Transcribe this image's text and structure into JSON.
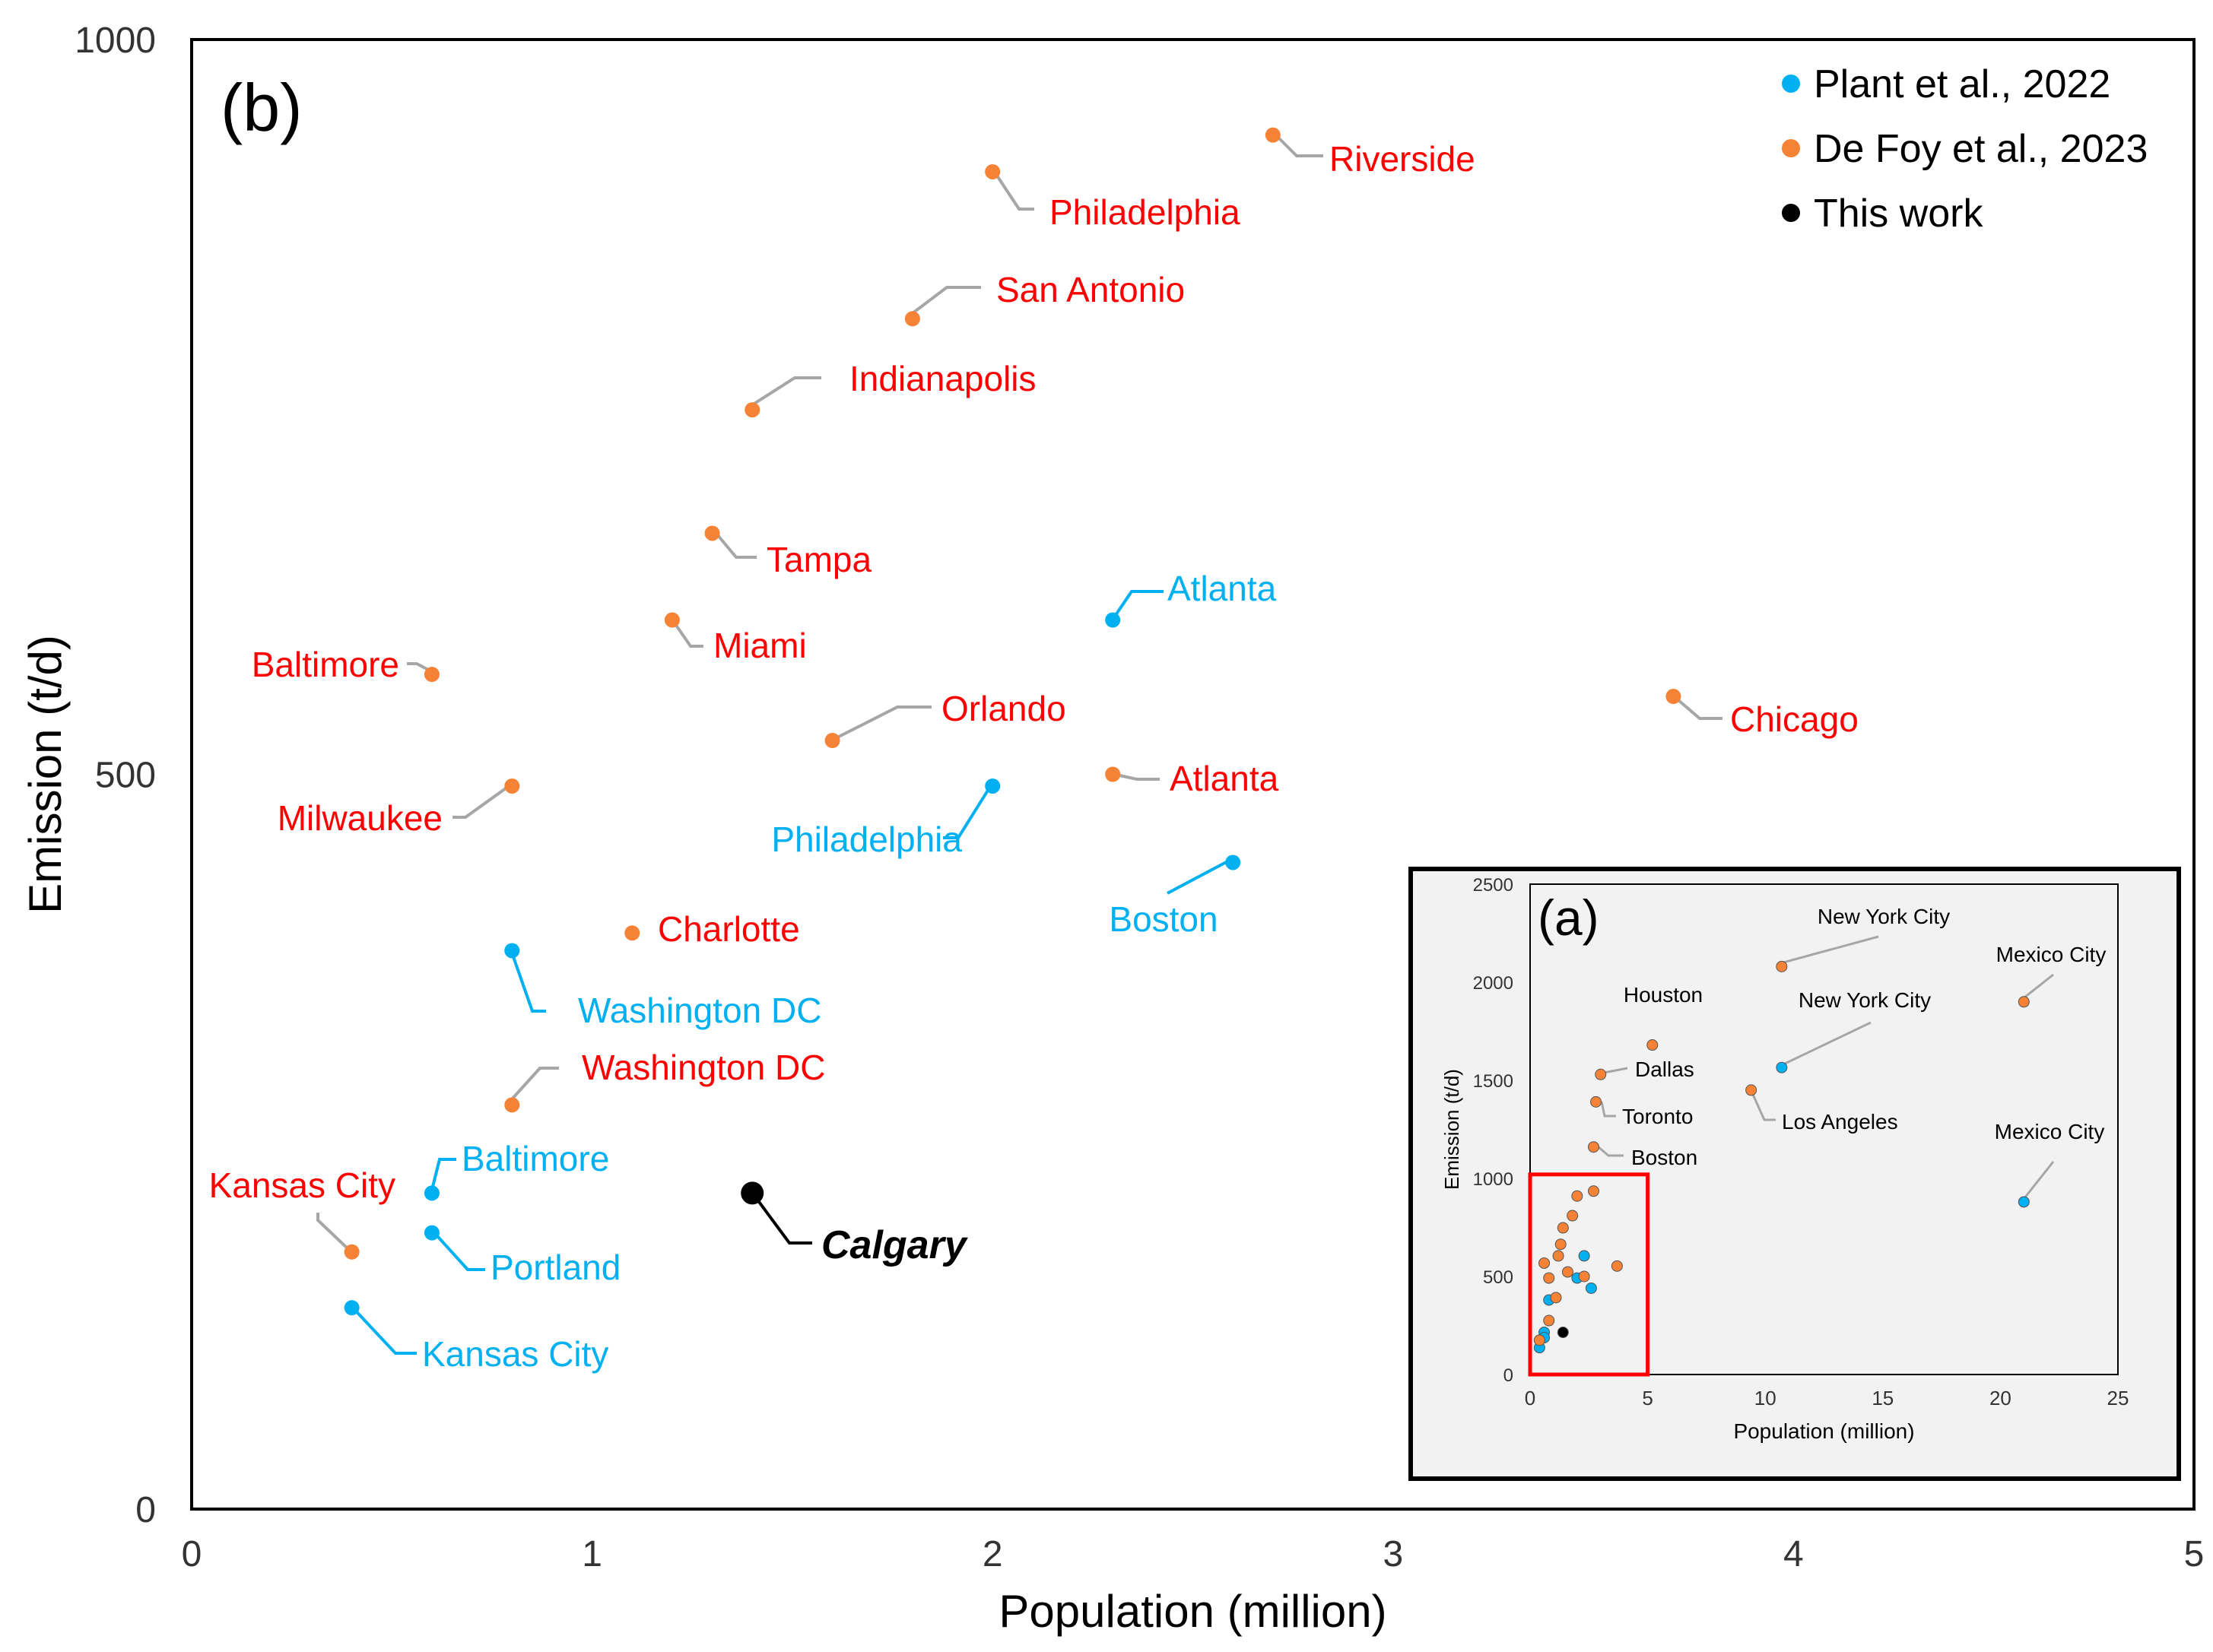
{
  "chart_data": [
    {
      "type": "scatter",
      "panel_label": "(b)",
      "xlabel": "Population  (million)",
      "ylabel": "Emission  (t/d)",
      "xlim": [
        0,
        5
      ],
      "ylim": [
        0,
        1000
      ],
      "x_ticks": [
        "0",
        "1",
        "2",
        "3",
        "4",
        "5"
      ],
      "y_ticks": [
        "0",
        "500",
        "1000"
      ],
      "grid": false,
      "legend_position": "top-right",
      "series": [
        {
          "name": "Plant et al., 2022",
          "color": "#00B0F0",
          "label_color": "#00B0F0",
          "points": [
            {
              "label": "Atlanta",
              "x": 2.3,
              "y": 605
            },
            {
              "label": "Philadelphia",
              "x": 2.0,
              "y": 492
            },
            {
              "label": "Boston",
              "x": 2.6,
              "y": 440
            },
            {
              "label": "Washington DC",
              "x": 0.8,
              "y": 380
            },
            {
              "label": "Baltimore",
              "x": 0.6,
              "y": 215
            },
            {
              "label": "Portland",
              "x": 0.6,
              "y": 188
            },
            {
              "label": "Kansas City",
              "x": 0.4,
              "y": 137
            }
          ]
        },
        {
          "name": "De Foy et al., 2023",
          "color": "#F58235",
          "label_color": "#FF0000",
          "points": [
            {
              "label": "Riverside",
              "x": 2.7,
              "y": 935
            },
            {
              "label": "Philadelphia",
              "x": 2.0,
              "y": 910
            },
            {
              "label": "San Antonio",
              "x": 1.8,
              "y": 810
            },
            {
              "label": "Indianapolis",
              "x": 1.4,
              "y": 748
            },
            {
              "label": "Tampa",
              "x": 1.3,
              "y": 664
            },
            {
              "label": "Miami",
              "x": 1.2,
              "y": 605
            },
            {
              "label": "Baltimore",
              "x": 0.6,
              "y": 568
            },
            {
              "label": "Orlando",
              "x": 1.6,
              "y": 523
            },
            {
              "label": "Chicago",
              "x": 3.7,
              "y": 553
            },
            {
              "label": "Atlanta",
              "x": 2.3,
              "y": 500
            },
            {
              "label": "Milwaukee",
              "x": 0.8,
              "y": 492
            },
            {
              "label": "Charlotte",
              "x": 1.1,
              "y": 392
            },
            {
              "label": "Washington DC",
              "x": 0.8,
              "y": 275
            },
            {
              "label": "Kansas City",
              "x": 0.4,
              "y": 175
            }
          ]
        },
        {
          "name": "This work",
          "color": "#000000",
          "label_color": "#000000",
          "points": [
            {
              "label": "Calgary",
              "x": 1.4,
              "y": 215
            }
          ]
        }
      ]
    },
    {
      "type": "scatter",
      "panel_label": "(a)",
      "xlabel": "Population (million)",
      "ylabel": "Emission (t/d)",
      "xlim": [
        0,
        25
      ],
      "ylim": [
        0,
        2500
      ],
      "x_ticks": [
        "0",
        "5",
        "10",
        "15",
        "20",
        "25"
      ],
      "y_ticks": [
        "0",
        "500",
        "1000",
        "1500",
        "2000",
        "2500"
      ],
      "grid": false,
      "zoom_box": {
        "x": [
          0,
          5
        ],
        "y": [
          0,
          1020
        ]
      },
      "series": [
        {
          "name": "Plant et al., 2022",
          "color": "#00B0F0",
          "points": [
            {
              "label": "New York City",
              "x": 10.7,
              "y": 1565
            },
            {
              "label": "Mexico City",
              "x": 21.0,
              "y": 880
            },
            {
              "label": "",
              "x": 2.3,
              "y": 605
            },
            {
              "label": "",
              "x": 2.0,
              "y": 492
            },
            {
              "label": "",
              "x": 2.6,
              "y": 440
            },
            {
              "label": "",
              "x": 0.8,
              "y": 380
            },
            {
              "label": "",
              "x": 0.6,
              "y": 215
            },
            {
              "label": "",
              "x": 0.6,
              "y": 188
            },
            {
              "label": "",
              "x": 0.4,
              "y": 137
            }
          ]
        },
        {
          "name": "De Foy et al., 2023",
          "color": "#F58235",
          "points": [
            {
              "label": "New York City",
              "x": 10.7,
              "y": 2080
            },
            {
              "label": "Mexico City",
              "x": 21.0,
              "y": 1900
            },
            {
              "label": "Houston",
              "x": 5.2,
              "y": 1680
            },
            {
              "label": "Dallas",
              "x": 3.0,
              "y": 1530
            },
            {
              "label": "Los Angeles",
              "x": 9.4,
              "y": 1450
            },
            {
              "label": "Toronto",
              "x": 2.8,
              "y": 1390
            },
            {
              "label": "Boston",
              "x": 2.7,
              "y": 1160
            },
            {
              "label": "",
              "x": 2.7,
              "y": 935
            },
            {
              "label": "",
              "x": 2.0,
              "y": 910
            },
            {
              "label": "",
              "x": 1.8,
              "y": 810
            },
            {
              "label": "",
              "x": 1.4,
              "y": 748
            },
            {
              "label": "",
              "x": 1.3,
              "y": 664
            },
            {
              "label": "",
              "x": 1.2,
              "y": 605
            },
            {
              "label": "",
              "x": 0.6,
              "y": 568
            },
            {
              "label": "",
              "x": 1.6,
              "y": 523
            },
            {
              "label": "",
              "x": 3.7,
              "y": 553
            },
            {
              "label": "",
              "x": 2.3,
              "y": 500
            },
            {
              "label": "",
              "x": 0.8,
              "y": 492
            },
            {
              "label": "",
              "x": 1.1,
              "y": 392
            },
            {
              "label": "",
              "x": 0.8,
              "y": 275
            },
            {
              "label": "",
              "x": 0.4,
              "y": 175
            }
          ]
        },
        {
          "name": "This work",
          "color": "#000000",
          "points": [
            {
              "label": "",
              "x": 1.4,
              "y": 215
            }
          ]
        }
      ]
    }
  ]
}
